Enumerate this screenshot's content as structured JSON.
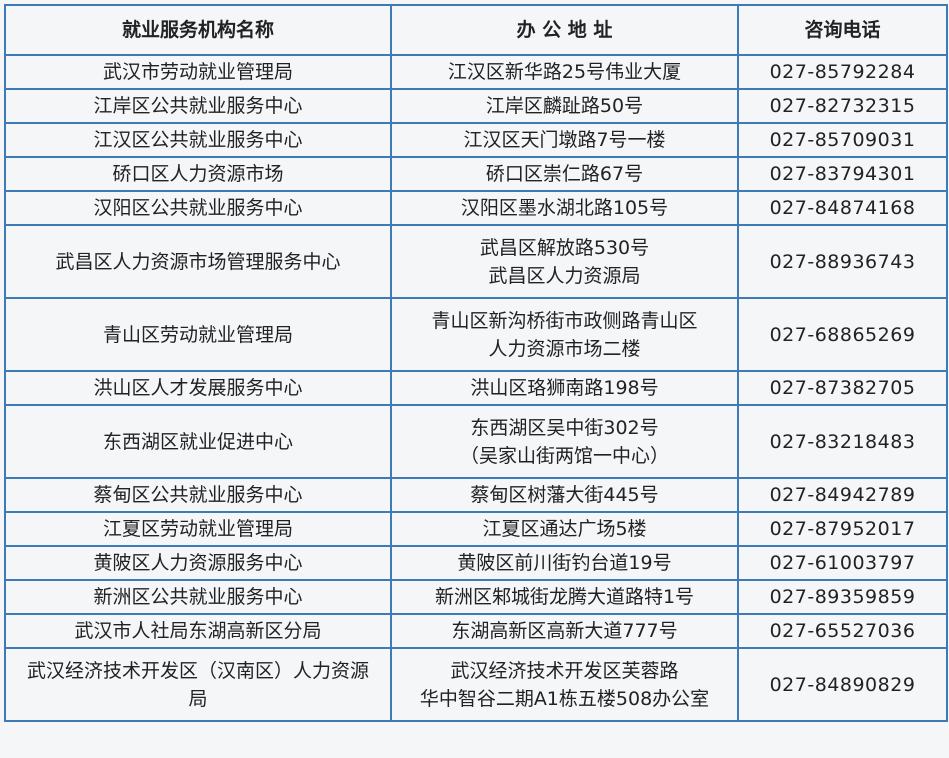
{
  "headers": [
    "就业服务机构名称",
    "办 公 地 址",
    "咨询电话"
  ],
  "rows": [
    {
      "name": "武汉市劳动就业管理局",
      "address": [
        "江汉区新华路25号伟业大厦"
      ],
      "phone": "027-85792284"
    },
    {
      "name": "江岸区公共就业服务中心",
      "address": [
        "江岸区麟趾路50号"
      ],
      "phone": "027-82732315"
    },
    {
      "name": "江汉区公共就业服务中心",
      "address": [
        "江汉区天门墩路7号一楼"
      ],
      "phone": "027-85709031"
    },
    {
      "name": "硚口区人力资源市场",
      "address": [
        "硚口区崇仁路67号"
      ],
      "phone": "027-83794301"
    },
    {
      "name": "汉阳区公共就业服务中心",
      "address": [
        "汉阳区墨水湖北路105号"
      ],
      "phone": "027-84874168"
    },
    {
      "name": "武昌区人力资源市场管理服务中心",
      "address": [
        "武昌区解放路530号",
        "武昌区人力资源局"
      ],
      "phone": "027-88936743"
    },
    {
      "name": "青山区劳动就业管理局",
      "address": [
        "青山区新沟桥街市政侧路青山区",
        "人力资源市场二楼"
      ],
      "phone": "027-68865269"
    },
    {
      "name": "洪山区人才发展服务中心",
      "address": [
        "洪山区珞狮南路198号"
      ],
      "phone": "027-87382705"
    },
    {
      "name": "东西湖区就业促进中心",
      "address": [
        "东西湖区吴中街302号",
        "（吴家山街两馆一中心）"
      ],
      "phone": "027-83218483"
    },
    {
      "name": "蔡甸区公共就业服务中心",
      "address": [
        "蔡甸区树藩大街445号"
      ],
      "phone": "027-84942789"
    },
    {
      "name": "江夏区劳动就业管理局",
      "address": [
        "江夏区通达广场5楼"
      ],
      "phone": "027-87952017"
    },
    {
      "name": "黄陂区人力资源服务中心",
      "address": [
        "黄陂区前川街钓台道19号"
      ],
      "phone": "027-61003797"
    },
    {
      "name": "新洲区公共就业服务中心",
      "address": [
        "新洲区邾城街龙腾大道路特1号"
      ],
      "phone": "027-89359859"
    },
    {
      "name": "武汉市人社局东湖高新区分局",
      "address": [
        "东湖高新区高新大道777号"
      ],
      "phone": "027-65527036"
    },
    {
      "name": "武汉经济技术开发区（汉南区）人力资源局",
      "address": [
        "武汉经济技术开发区芙蓉路",
        "华中智谷二期A1栋五楼508办公室"
      ],
      "phone": "027-84890829"
    }
  ]
}
